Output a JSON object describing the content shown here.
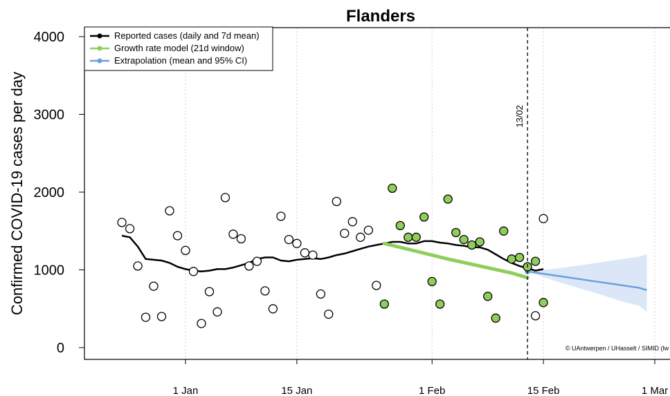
{
  "chart_data": {
    "type": "scatter",
    "title": "Flanders",
    "ylabel": "Confirmed COVID-19 cases per day",
    "xlabel": "",
    "ylim": [
      0,
      4000
    ],
    "yticks": [
      0,
      1000,
      2000,
      3000,
      4000
    ],
    "x_axis": {
      "type": "date",
      "range": [
        "2020-12-22",
        "2021-03-04"
      ],
      "ticks": [
        {
          "date": "2021-01-01",
          "label": "1 Jan"
        },
        {
          "date": "2021-01-15",
          "label": "15 Jan"
        },
        {
          "date": "2021-02-01",
          "label": "1 Feb"
        },
        {
          "date": "2021-02-15",
          "label": "15 Feb"
        },
        {
          "date": "2021-03-01",
          "label": "1 Mar"
        }
      ]
    },
    "grid": "vertical-dotted",
    "legend": {
      "position": "top-left",
      "entries": [
        {
          "label": "Reported cases (daily and 7d mean)",
          "color": "#000000"
        },
        {
          "label": "Growth rate model (21d window)",
          "color": "#8fce5a"
        },
        {
          "label": "Extrapolation (mean and 95% CI)",
          "color": "#6a9fdc"
        }
      ]
    },
    "reference_line": {
      "date": "2021-02-13",
      "label": "13/02"
    },
    "credit": "© UAntwerpen / UHasselt / SIMID (lw",
    "colors": {
      "reported": "#000000",
      "model": "#8fce5a",
      "model_point_fill": "#8fce5a",
      "extrapolation": "#6a9fdc",
      "ci_fill": "#dbe7f7"
    },
    "series": [
      {
        "name": "Reported cases (daily and 7d mean)",
        "kind": "daily-points-open",
        "points": [
          {
            "x": "2020-12-24",
            "y": 1610
          },
          {
            "x": "2020-12-25",
            "y": 1530
          },
          {
            "x": "2020-12-26",
            "y": 1050
          },
          {
            "x": "2020-12-27",
            "y": 390
          },
          {
            "x": "2020-12-28",
            "y": 790
          },
          {
            "x": "2020-12-29",
            "y": 400
          },
          {
            "x": "2020-12-30",
            "y": 1760
          },
          {
            "x": "2020-12-31",
            "y": 1440
          },
          {
            "x": "2021-01-01",
            "y": 1250
          },
          {
            "x": "2021-01-02",
            "y": 980
          },
          {
            "x": "2021-01-03",
            "y": 310
          },
          {
            "x": "2021-01-04",
            "y": 720
          },
          {
            "x": "2021-01-05",
            "y": 460
          },
          {
            "x": "2021-01-06",
            "y": 1930
          },
          {
            "x": "2021-01-07",
            "y": 1460
          },
          {
            "x": "2021-01-08",
            "y": 1400
          },
          {
            "x": "2021-01-09",
            "y": 1050
          },
          {
            "x": "2021-01-10",
            "y": 1110
          },
          {
            "x": "2021-01-11",
            "y": 730
          },
          {
            "x": "2021-01-12",
            "y": 500
          },
          {
            "x": "2021-01-13",
            "y": 1690
          },
          {
            "x": "2021-01-14",
            "y": 1390
          },
          {
            "x": "2021-01-15",
            "y": 1340
          },
          {
            "x": "2021-01-16",
            "y": 1220
          },
          {
            "x": "2021-01-17",
            "y": 1190
          },
          {
            "x": "2021-01-18",
            "y": 690
          },
          {
            "x": "2021-01-19",
            "y": 430
          },
          {
            "x": "2021-01-20",
            "y": 1880
          },
          {
            "x": "2021-01-21",
            "y": 1470
          },
          {
            "x": "2021-01-22",
            "y": 1620
          },
          {
            "x": "2021-01-23",
            "y": 1420
          },
          {
            "x": "2021-01-24",
            "y": 1510
          },
          {
            "x": "2021-01-25",
            "y": 800
          },
          {
            "x": "2021-02-14",
            "y": 410
          },
          {
            "x": "2021-02-15",
            "y": 1660
          }
        ]
      },
      {
        "name": "Reported cases (daily and 7d mean)",
        "kind": "daily-points-filled",
        "points": [
          {
            "x": "2021-01-26",
            "y": 560
          },
          {
            "x": "2021-01-27",
            "y": 2050
          },
          {
            "x": "2021-01-28",
            "y": 1570
          },
          {
            "x": "2021-01-29",
            "y": 1420
          },
          {
            "x": "2021-01-30",
            "y": 1420
          },
          {
            "x": "2021-01-31",
            "y": 1680
          },
          {
            "x": "2021-02-01",
            "y": 850
          },
          {
            "x": "2021-02-02",
            "y": 560
          },
          {
            "x": "2021-02-03",
            "y": 1910
          },
          {
            "x": "2021-02-04",
            "y": 1480
          },
          {
            "x": "2021-02-05",
            "y": 1390
          },
          {
            "x": "2021-02-06",
            "y": 1320
          },
          {
            "x": "2021-02-07",
            "y": 1360
          },
          {
            "x": "2021-02-08",
            "y": 660
          },
          {
            "x": "2021-02-09",
            "y": 380
          },
          {
            "x": "2021-02-10",
            "y": 1500
          },
          {
            "x": "2021-02-11",
            "y": 1140
          },
          {
            "x": "2021-02-12",
            "y": 1160
          },
          {
            "x": "2021-02-13",
            "y": 1040
          },
          {
            "x": "2021-02-14",
            "y": 1110
          },
          {
            "x": "2021-02-15",
            "y": 580
          }
        ]
      },
      {
        "name": "Reported cases (daily and 7d mean)",
        "kind": "7d-mean-line",
        "points": [
          {
            "x": "2020-12-24",
            "y": 1440
          },
          {
            "x": "2020-12-25",
            "y": 1420
          },
          {
            "x": "2020-12-26",
            "y": 1300
          },
          {
            "x": "2020-12-27",
            "y": 1140
          },
          {
            "x": "2020-12-28",
            "y": 1130
          },
          {
            "x": "2020-12-29",
            "y": 1120
          },
          {
            "x": "2020-12-30",
            "y": 1090
          },
          {
            "x": "2020-12-31",
            "y": 1040
          },
          {
            "x": "2021-01-01",
            "y": 1010
          },
          {
            "x": "2021-01-02",
            "y": 990
          },
          {
            "x": "2021-01-03",
            "y": 980
          },
          {
            "x": "2021-01-04",
            "y": 990
          },
          {
            "x": "2021-01-05",
            "y": 1010
          },
          {
            "x": "2021-01-06",
            "y": 1010
          },
          {
            "x": "2021-01-07",
            "y": 1030
          },
          {
            "x": "2021-01-08",
            "y": 1060
          },
          {
            "x": "2021-01-09",
            "y": 1090
          },
          {
            "x": "2021-01-10",
            "y": 1140
          },
          {
            "x": "2021-01-11",
            "y": 1160
          },
          {
            "x": "2021-01-12",
            "y": 1160
          },
          {
            "x": "2021-01-13",
            "y": 1120
          },
          {
            "x": "2021-01-14",
            "y": 1110
          },
          {
            "x": "2021-01-15",
            "y": 1130
          },
          {
            "x": "2021-01-16",
            "y": 1140
          },
          {
            "x": "2021-01-17",
            "y": 1150
          },
          {
            "x": "2021-01-18",
            "y": 1140
          },
          {
            "x": "2021-01-19",
            "y": 1160
          },
          {
            "x": "2021-01-20",
            "y": 1190
          },
          {
            "x": "2021-01-21",
            "y": 1210
          },
          {
            "x": "2021-01-22",
            "y": 1240
          },
          {
            "x": "2021-01-23",
            "y": 1270
          },
          {
            "x": "2021-01-24",
            "y": 1300
          },
          {
            "x": "2021-01-25",
            "y": 1320
          },
          {
            "x": "2021-01-26",
            "y": 1340
          },
          {
            "x": "2021-01-27",
            "y": 1360
          },
          {
            "x": "2021-01-28",
            "y": 1360
          },
          {
            "x": "2021-01-29",
            "y": 1340
          },
          {
            "x": "2021-01-30",
            "y": 1340
          },
          {
            "x": "2021-01-31",
            "y": 1370
          },
          {
            "x": "2021-02-01",
            "y": 1370
          },
          {
            "x": "2021-02-02",
            "y": 1350
          },
          {
            "x": "2021-02-03",
            "y": 1340
          },
          {
            "x": "2021-02-04",
            "y": 1320
          },
          {
            "x": "2021-02-05",
            "y": 1310
          },
          {
            "x": "2021-02-06",
            "y": 1290
          },
          {
            "x": "2021-02-07",
            "y": 1290
          },
          {
            "x": "2021-02-08",
            "y": 1260
          },
          {
            "x": "2021-02-09",
            "y": 1200
          },
          {
            "x": "2021-02-10",
            "y": 1140
          },
          {
            "x": "2021-02-11",
            "y": 1090
          },
          {
            "x": "2021-02-12",
            "y": 1050
          },
          {
            "x": "2021-02-13",
            "y": 1020
          },
          {
            "x": "2021-02-14",
            "y": 990
          },
          {
            "x": "2021-02-15",
            "y": 1010
          }
        ]
      },
      {
        "name": "Growth rate model (21d window)",
        "kind": "model-line",
        "points": [
          {
            "x": "2021-01-26",
            "y": 1340
          },
          {
            "x": "2021-01-30",
            "y": 1240
          },
          {
            "x": "2021-02-03",
            "y": 1140
          },
          {
            "x": "2021-02-07",
            "y": 1050
          },
          {
            "x": "2021-02-11",
            "y": 960
          },
          {
            "x": "2021-02-13",
            "y": 900
          }
        ]
      },
      {
        "name": "Extrapolation (mean and 95% CI)",
        "kind": "extrapolation",
        "points": [
          {
            "x": "2021-02-13",
            "y": 980,
            "lo": 980,
            "hi": 980
          },
          {
            "x": "2021-02-17",
            "y": 920,
            "lo": 840,
            "hi": 1020
          },
          {
            "x": "2021-02-21",
            "y": 860,
            "lo": 720,
            "hi": 1080
          },
          {
            "x": "2021-02-25",
            "y": 800,
            "lo": 590,
            "hi": 1140
          },
          {
            "x": "2021-02-27",
            "y": 770,
            "lo": 540,
            "hi": 1170
          },
          {
            "x": "2021-02-28",
            "y": 740,
            "lo": 460,
            "hi": 1200
          }
        ]
      }
    ]
  }
}
